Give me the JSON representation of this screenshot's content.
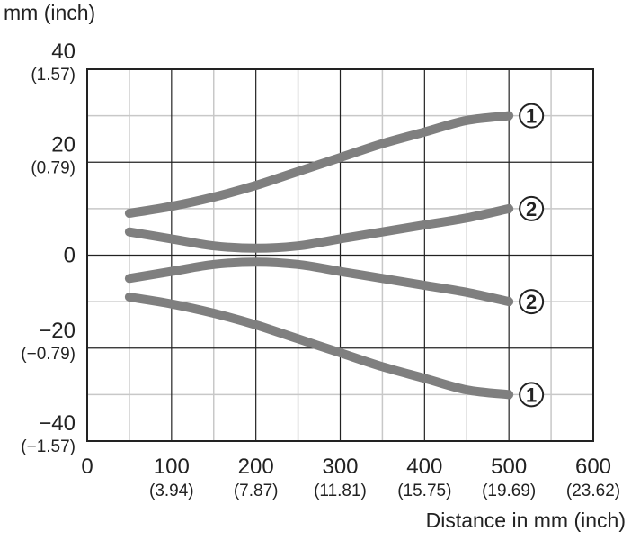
{
  "chart_data": {
    "type": "line",
    "title": "",
    "xlabel": "Distance in mm (inch)",
    "ylabel": "mm (inch)",
    "xlim": [
      0,
      600
    ],
    "ylim": [
      -40,
      40
    ],
    "grid": true,
    "x_ticks": [
      {
        "value": 0,
        "label": "0",
        "sub": ""
      },
      {
        "value": 100,
        "label": "100",
        "sub": "(3.94)"
      },
      {
        "value": 200,
        "label": "200",
        "sub": "(7.87)"
      },
      {
        "value": 300,
        "label": "300",
        "sub": "(11.81)"
      },
      {
        "value": 400,
        "label": "400",
        "sub": "(15.75)"
      },
      {
        "value": 500,
        "label": "500",
        "sub": "(19.69)"
      },
      {
        "value": 600,
        "label": "600",
        "sub": "(23.62)"
      }
    ],
    "y_ticks": [
      {
        "value": 40,
        "label": "40",
        "sub": "(1.57)"
      },
      {
        "value": 20,
        "label": "20",
        "sub": "(0.79)"
      },
      {
        "value": 0,
        "label": "0",
        "sub": ""
      },
      {
        "value": -20,
        "label": "−20",
        "sub": "(−0.79)"
      },
      {
        "value": -40,
        "label": "−40",
        "sub": "(−1.57)"
      }
    ],
    "series": [
      {
        "name": "①",
        "x": [
          50,
          100,
          150,
          200,
          250,
          300,
          350,
          400,
          450,
          500
        ],
        "y": [
          9,
          10.5,
          12.5,
          15,
          18,
          21,
          24,
          26.5,
          29,
          30
        ]
      },
      {
        "name": "②",
        "x": [
          50,
          100,
          150,
          200,
          250,
          300,
          350,
          400,
          450,
          500
        ],
        "y": [
          5,
          3.5,
          2,
          1.5,
          2,
          3.5,
          5,
          6.5,
          8,
          10
        ]
      },
      {
        "name": "②",
        "x": [
          50,
          100,
          150,
          200,
          250,
          300,
          350,
          400,
          450,
          500
        ],
        "y": [
          -5,
          -3.5,
          -2,
          -1.5,
          -2,
          -3.5,
          -5,
          -6.5,
          -8,
          -10
        ]
      },
      {
        "name": "①",
        "x": [
          50,
          100,
          150,
          200,
          250,
          300,
          350,
          400,
          450,
          500
        ],
        "y": [
          -9,
          -10.5,
          -12.5,
          -15,
          -18,
          -21,
          -24,
          -26.5,
          -29,
          -30
        ]
      }
    ],
    "line_color": "#7f7f7f",
    "grid_color": "#c8c8c8",
    "axis_color": "#222222"
  }
}
